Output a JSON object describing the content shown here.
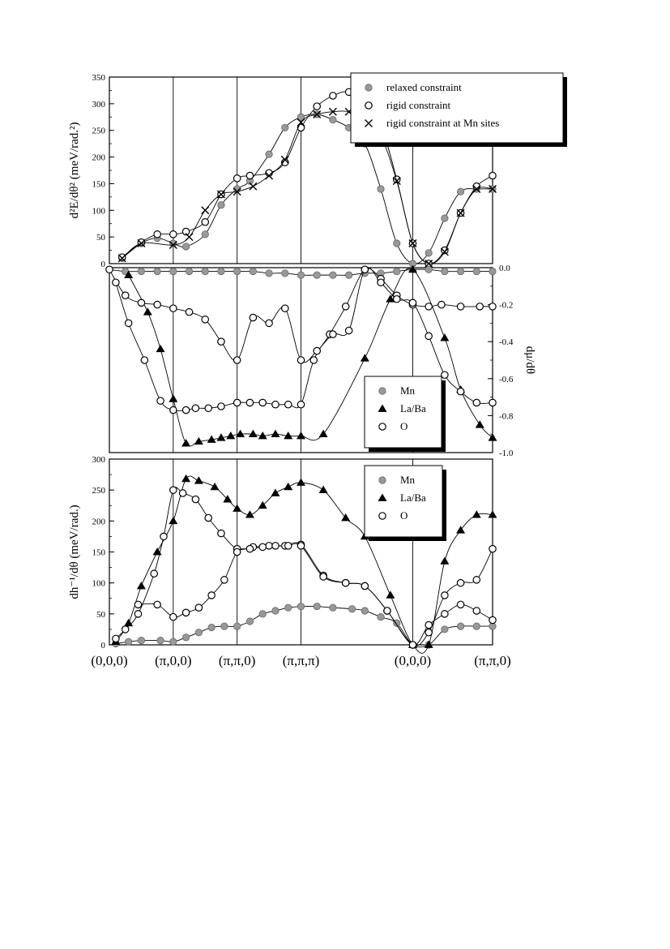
{
  "chart_data": [
    {
      "type": "scatter",
      "ylabel": "d²E/dθ² (meV/rad.²)",
      "ylim": [
        0,
        350
      ],
      "yticks": [
        0,
        50,
        100,
        150,
        200,
        250,
        300,
        350
      ],
      "legend_position": "top-right",
      "series": [
        {
          "name": "relaxed constraint",
          "marker": "shaded-circle",
          "x": [
            0.2,
            0.5,
            0.75,
            1.0,
            1.2,
            1.5,
            1.75,
            2.0,
            2.2,
            2.5,
            2.75,
            3.0,
            3.25,
            3.5,
            3.75,
            4.0,
            4.25,
            4.5,
            4.75,
            5.0,
            5.25,
            5.5,
            5.75,
            6.0
          ],
          "y": [
            10,
            38,
            48,
            38,
            32,
            55,
            110,
            140,
            155,
            205,
            255,
            275,
            280,
            270,
            255,
            225,
            140,
            38,
            0,
            20,
            85,
            135,
            140,
            140
          ]
        },
        {
          "name": "rigid constraint",
          "marker": "open-circle",
          "x": [
            0.2,
            0.5,
            0.75,
            1.0,
            1.2,
            1.5,
            1.75,
            2.0,
            2.2,
            2.5,
            2.75,
            3.0,
            3.25,
            3.5,
            3.75,
            4.0,
            4.25,
            4.5,
            4.75,
            5.0,
            5.25,
            5.5,
            5.75,
            6.0
          ],
          "y": [
            12,
            40,
            55,
            55,
            60,
            78,
            130,
            160,
            165,
            170,
            190,
            255,
            295,
            315,
            322,
            300,
            260,
            158,
            38,
            0,
            25,
            95,
            145,
            165
          ]
        },
        {
          "name": "rigid constraint at Mn sites",
          "marker": "cross",
          "x": [
            0.2,
            0.5,
            1.0,
            1.25,
            1.5,
            1.75,
            2.0,
            2.25,
            2.5,
            2.75,
            3.0,
            3.25,
            3.5,
            3.75,
            4.0,
            4.25,
            4.5,
            4.75,
            5.0,
            5.25,
            5.5,
            5.75,
            6.0
          ],
          "y": [
            10,
            38,
            35,
            50,
            100,
            130,
            135,
            145,
            165,
            195,
            265,
            280,
            285,
            285,
            270,
            240,
            155,
            38,
            0,
            22,
            95,
            140,
            140
          ]
        }
      ]
    },
    {
      "type": "scatter",
      "ylabel": "dμ/dθ",
      "ylim": [
        -1.0,
        0.0
      ],
      "yticks": [
        "0.0",
        "-0.2",
        "-0.4",
        "-0.6",
        "-0.8",
        "-1.0"
      ],
      "legend_position": "bottom-right",
      "series": [
        {
          "name": "Mn",
          "marker": "shaded-circle",
          "x": [
            0.0,
            0.25,
            0.5,
            0.75,
            1.0,
            1.25,
            1.5,
            1.75,
            2.0,
            2.25,
            2.5,
            2.75,
            3.0,
            3.25,
            3.5,
            3.75,
            4.0,
            4.25,
            4.5,
            4.75,
            5.0,
            5.25,
            5.5,
            5.75,
            6.0
          ],
          "y": [
            -0.01,
            -0.02,
            -0.02,
            -0.02,
            -0.02,
            -0.02,
            -0.02,
            -0.02,
            -0.02,
            -0.02,
            -0.03,
            -0.03,
            -0.04,
            -0.04,
            -0.04,
            -0.04,
            -0.03,
            -0.03,
            -0.02,
            -0.01,
            -0.01,
            -0.02,
            -0.02,
            -0.02,
            -0.02
          ]
        },
        {
          "name": "La/Ba",
          "marker": "filled-triangle",
          "x": [
            0.3,
            0.6,
            0.8,
            1.0,
            1.2,
            1.4,
            1.6,
            1.75,
            1.9,
            2.05,
            2.25,
            2.4,
            2.6,
            2.8,
            3.0,
            3.35,
            4.0,
            4.4,
            4.75,
            5.25,
            5.5,
            5.8,
            6.0
          ],
          "y": [
            -0.04,
            -0.24,
            -0.44,
            -0.71,
            -0.95,
            -0.94,
            -0.93,
            -0.92,
            -0.91,
            -0.9,
            -0.9,
            -0.91,
            -0.9,
            -0.91,
            -0.91,
            -0.9,
            -0.49,
            -0.17,
            -0.01,
            -0.38,
            -0.66,
            -0.85,
            -0.92
          ]
        },
        {
          "name": "O",
          "marker": "open-circle",
          "x": [
            0.1,
            0.3,
            0.55,
            0.8,
            1.0,
            1.2,
            1.35,
            1.55,
            1.75,
            2.0,
            2.2,
            2.4,
            2.6,
            2.8,
            3.0,
            3.2,
            3.45,
            3.7,
            4.0,
            4.25,
            4.5,
            4.75,
            5.0,
            5.2,
            5.5,
            5.8,
            6.0,
            0.0,
            0.25,
            0.5,
            0.75,
            1.0,
            1.25,
            1.5,
            1.75,
            2.0,
            2.25,
            2.5,
            2.75,
            3.0,
            3.25,
            3.5,
            3.75,
            4.0,
            4.25,
            4.5,
            4.75,
            5.0,
            5.25,
            5.5,
            5.75,
            6.0
          ],
          "y": [
            -0.08,
            -0.3,
            -0.5,
            -0.72,
            -0.77,
            -0.77,
            -0.76,
            -0.76,
            -0.75,
            -0.73,
            -0.73,
            -0.73,
            -0.74,
            -0.74,
            -0.74,
            -0.5,
            -0.36,
            -0.21,
            -0.01,
            -0.06,
            -0.15,
            -0.2,
            -0.21,
            -0.2,
            -0.21,
            -0.21,
            -0.21,
            -0.01,
            -0.15,
            -0.19,
            -0.2,
            -0.22,
            -0.24,
            -0.28,
            -0.4,
            -0.5,
            -0.27,
            -0.3,
            -0.22,
            -0.5,
            -0.45,
            -0.36,
            -0.34,
            -0.01,
            -0.08,
            -0.17,
            -0.19,
            -0.37,
            -0.58,
            -0.67,
            -0.73,
            -0.73
          ]
        }
      ]
    },
    {
      "type": "scatter",
      "ylabel": "dh⁻¹/dθ (meV/rad.)",
      "ylim": [
        0,
        300
      ],
      "yticks": [
        0,
        50,
        100,
        150,
        200,
        250,
        300
      ],
      "legend_position": "top-right",
      "categories": [
        "(0,0,0)",
        "(π,0,0)",
        "(π,π,0)",
        "(π,π,π)",
        "(0,0,0)",
        "(π,π,0)"
      ],
      "series": [
        {
          "name": "Mn",
          "marker": "shaded-circle",
          "x": [
            0.1,
            0.3,
            0.5,
            0.8,
            1.0,
            1.2,
            1.4,
            1.6,
            1.8,
            2.0,
            2.2,
            2.4,
            2.6,
            2.8,
            3.0,
            3.25,
            3.5,
            3.8,
            4.0,
            4.25,
            4.5,
            4.75,
            5.0,
            5.25,
            5.5,
            5.75,
            6.0
          ],
          "y": [
            2,
            5,
            7,
            7,
            5,
            12,
            20,
            28,
            30,
            30,
            38,
            50,
            55,
            60,
            62,
            62,
            60,
            58,
            55,
            45,
            35,
            0,
            0,
            25,
            30,
            30,
            30
          ]
        },
        {
          "name": "La/Ba",
          "marker": "filled-triangle",
          "x": [
            0.1,
            0.3,
            0.5,
            0.75,
            1.0,
            1.2,
            1.4,
            1.65,
            1.85,
            2.0,
            2.2,
            2.4,
            2.6,
            2.8,
            3.0,
            3.35,
            3.7,
            4.0,
            4.4,
            4.75,
            5.0,
            5.25,
            5.5,
            5.75,
            6.0
          ],
          "y": [
            5,
            35,
            95,
            150,
            200,
            268,
            265,
            255,
            235,
            220,
            210,
            225,
            245,
            255,
            262,
            250,
            205,
            175,
            80,
            0,
            0,
            135,
            185,
            210,
            210
          ]
        },
        {
          "name": "O",
          "marker": "open-circle",
          "x": [
            0.1,
            0.25,
            0.45,
            0.7,
            0.85,
            1.0,
            1.15,
            1.35,
            1.55,
            1.75,
            2.0,
            2.25,
            2.5,
            2.75,
            3.0,
            3.35,
            3.7,
            4.0,
            4.35,
            4.75,
            5.0,
            5.25,
            5.5,
            5.75,
            6.0,
            0.45,
            0.75,
            1.0,
            1.2,
            1.4,
            1.6,
            1.8,
            2.0,
            2.2,
            2.4,
            2.6,
            2.8,
            3.0,
            3.35,
            3.7,
            4.0,
            4.35,
            4.75,
            5.0,
            5.25,
            5.5,
            5.75,
            6.0
          ],
          "y": [
            10,
            25,
            50,
            115,
            175,
            250,
            245,
            235,
            205,
            180,
            155,
            158,
            160,
            160,
            162,
            112,
            100,
            95,
            55,
            0,
            20,
            80,
            100,
            105,
            155,
            65,
            65,
            45,
            52,
            60,
            80,
            105,
            150,
            155,
            158,
            160,
            160,
            160,
            110,
            100,
            95,
            55,
            0,
            32,
            50,
            65,
            55,
            40
          ]
        }
      ]
    }
  ]
}
